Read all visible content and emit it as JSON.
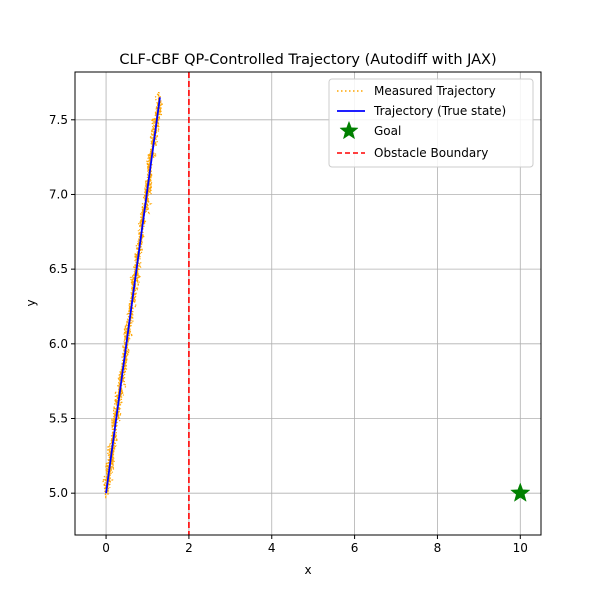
{
  "chart_data": {
    "type": "line",
    "title": "CLF-CBF QP-Controlled Trajectory (Autodiff with JAX)",
    "xlabel": "x",
    "ylabel": "y",
    "xlim": [
      -0.75,
      10.5
    ],
    "ylim": [
      4.72,
      7.82
    ],
    "xticks": [
      0,
      2,
      4,
      6,
      8,
      10
    ],
    "xtick_labels": [
      "0",
      "2",
      "4",
      "6",
      "8",
      "10"
    ],
    "yticks": [
      5.0,
      5.5,
      6.0,
      6.5,
      7.0,
      7.5
    ],
    "ytick_labels": [
      "5.0",
      "5.5",
      "6.0",
      "6.5",
      "7.0",
      "7.5"
    ],
    "grid": true,
    "legend_position": "top-right",
    "legend": [
      {
        "label": "Measured Trajectory",
        "style": "dotted",
        "color": "#FFA500"
      },
      {
        "label": "Trajectory (True state)",
        "style": "solid",
        "color": "#0000FF"
      },
      {
        "label": "Goal",
        "style": "star",
        "color": "#008000"
      },
      {
        "label": "Obstacle Boundary",
        "style": "dashed",
        "color": "#FF0000"
      }
    ],
    "series": [
      {
        "name": "Measured Trajectory",
        "kind": "noisy_line",
        "color": "#FFA500",
        "x_start": 0.0,
        "y_start": 5.0,
        "x_end": 1.3,
        "y_end": 7.65,
        "noise_x": 0.09,
        "noise_y": 0.07,
        "samples": 900
      },
      {
        "name": "Trajectory (True state)",
        "color": "#0000FF",
        "x": [
          0.0,
          1.3
        ],
        "y": [
          5.0,
          7.65
        ]
      }
    ],
    "goal": {
      "name": "Goal",
      "x": 10,
      "y": 5.0,
      "color": "#008000"
    },
    "obstacle_boundary": {
      "name": "Obstacle Boundary",
      "x": 2,
      "color": "#FF0000"
    }
  }
}
